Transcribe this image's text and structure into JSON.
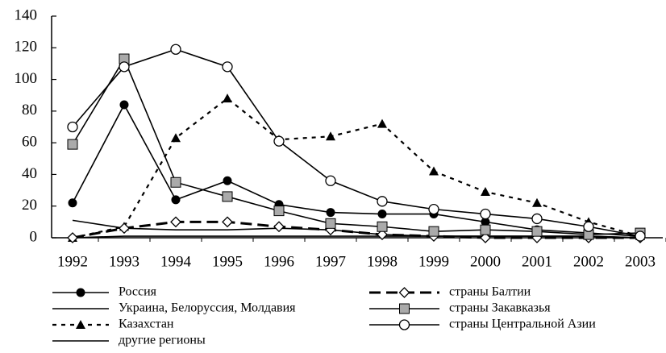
{
  "chart_data": {
    "type": "line",
    "categories": [
      "1992",
      "1993",
      "1994",
      "1995",
      "1996",
      "1997",
      "1998",
      "1999",
      "2000",
      "2001",
      "2002",
      "2003"
    ],
    "ylim": [
      0,
      140
    ],
    "yticks": [
      0,
      20,
      40,
      60,
      80,
      100,
      120,
      140
    ],
    "series": [
      {
        "name": "Россия",
        "color": "#000000",
        "marker": "circle-filled",
        "dash": "solid",
        "values": [
          22,
          84,
          24,
          36,
          21,
          16,
          15,
          15,
          10,
          5,
          3,
          1
        ]
      },
      {
        "name": "Украина, Белоруссия, Молдавия",
        "color": "#000000",
        "marker": "none",
        "dash": "solid",
        "values": [
          11,
          6,
          5,
          5,
          6,
          5,
          2,
          1,
          1,
          1,
          1,
          0
        ]
      },
      {
        "name": "Казахстан",
        "color": "#000000",
        "marker": "triangle",
        "dash": "dotted",
        "values": [
          0,
          7,
          63,
          88,
          62,
          64,
          72,
          42,
          29,
          22,
          10,
          1
        ]
      },
      {
        "name": "другие регионы",
        "color": "#000000",
        "marker": "none",
        "dash": "solid",
        "values": [
          0,
          1,
          1,
          1,
          1,
          1,
          1,
          1,
          1,
          1,
          1,
          0
        ]
      },
      {
        "name": "страны Балтии",
        "color": "#000000",
        "marker": "diamond",
        "dash": "long",
        "values": [
          0,
          6,
          10,
          10,
          7,
          5,
          2,
          1,
          0,
          0,
          0,
          0
        ]
      },
      {
        "name": "страны Закавказья",
        "color": "#000000",
        "marker": "square",
        "dash": "solid",
        "values": [
          59,
          113,
          35,
          26,
          17,
          9,
          7,
          4,
          5,
          4,
          2,
          3
        ]
      },
      {
        "name": "страны Центральной Азии",
        "color": "#000000",
        "marker": "circle-open",
        "dash": "solid",
        "values": [
          70,
          108,
          119,
          108,
          61,
          36,
          23,
          18,
          15,
          12,
          7,
          1
        ]
      }
    ]
  }
}
